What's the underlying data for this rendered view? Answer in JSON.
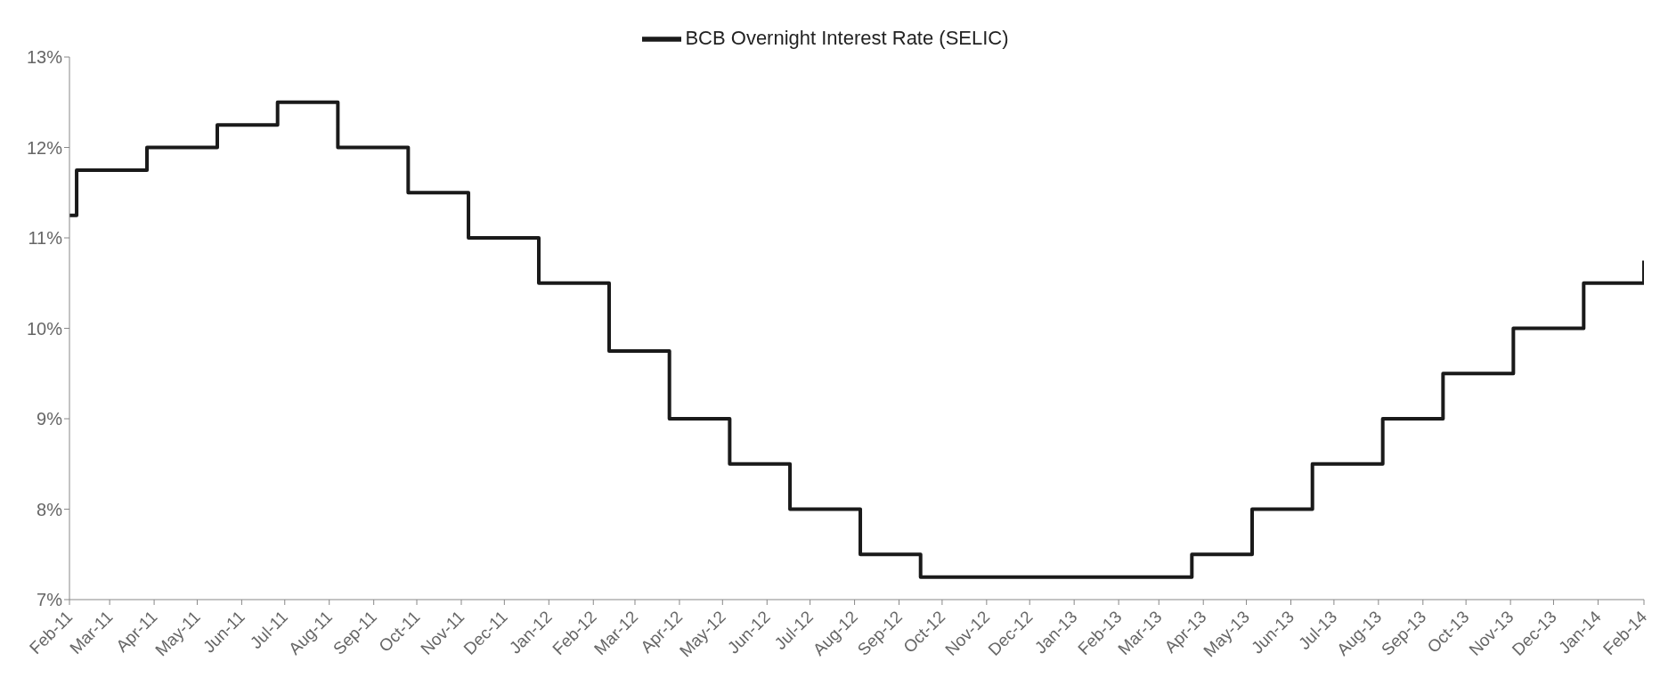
{
  "chart_data": {
    "type": "step",
    "series": [
      {
        "name": "BCB Overnight Interest Rate (SELIC)",
        "color": "#1a1a1a",
        "x": [
          "2011-02-25",
          "2011-03-02",
          "2011-04-20",
          "2011-06-08",
          "2011-07-20",
          "2011-08-31",
          "2011-10-19",
          "2011-11-30",
          "2012-01-18",
          "2012-03-07",
          "2012-04-18",
          "2012-05-30",
          "2012-07-11",
          "2012-08-29",
          "2012-10-10",
          "2013-04-17",
          "2013-05-29",
          "2013-07-10",
          "2013-08-28",
          "2013-10-09",
          "2013-11-27",
          "2014-01-15",
          "2014-02-26"
        ],
        "values": [
          11.25,
          11.75,
          12,
          12.25,
          12.5,
          12,
          11.5,
          11,
          10.5,
          9.75,
          9,
          8.5,
          8,
          7.5,
          7.25,
          7.5,
          8,
          8.5,
          9,
          9.5,
          10,
          10.5,
          10.75
        ]
      }
    ],
    "xlim": [
      "2011-02-25",
      "2014-02-26"
    ],
    "xticks": [
      {
        "value": "2011-02-25",
        "label": "Feb-11"
      },
      {
        "value": "2011-03-25",
        "label": "Mar-11"
      },
      {
        "value": "2011-04-25",
        "label": "Apr-11"
      },
      {
        "value": "2011-05-25",
        "label": "May-11"
      },
      {
        "value": "2011-06-25",
        "label": "Jun-11"
      },
      {
        "value": "2011-07-25",
        "label": "Jul-11"
      },
      {
        "value": "2011-08-25",
        "label": "Aug-11"
      },
      {
        "value": "2011-09-25",
        "label": "Sep-11"
      },
      {
        "value": "2011-10-25",
        "label": "Oct-11"
      },
      {
        "value": "2011-11-25",
        "label": "Nov-11"
      },
      {
        "value": "2011-12-25",
        "label": "Dec-11"
      },
      {
        "value": "2012-01-25",
        "label": "Jan-12"
      },
      {
        "value": "2012-02-25",
        "label": "Feb-12"
      },
      {
        "value": "2012-03-25",
        "label": "Mar-12"
      },
      {
        "value": "2012-04-25",
        "label": "Apr-12"
      },
      {
        "value": "2012-05-25",
        "label": "May-12"
      },
      {
        "value": "2012-06-25",
        "label": "Jun-12"
      },
      {
        "value": "2012-07-25",
        "label": "Jul-12"
      },
      {
        "value": "2012-08-25",
        "label": "Aug-12"
      },
      {
        "value": "2012-09-25",
        "label": "Sep-12"
      },
      {
        "value": "2012-10-25",
        "label": "Oct-12"
      },
      {
        "value": "2012-11-25",
        "label": "Nov-12"
      },
      {
        "value": "2012-12-25",
        "label": "Dec-12"
      },
      {
        "value": "2013-01-25",
        "label": "Jan-13"
      },
      {
        "value": "2013-02-25",
        "label": "Feb-13"
      },
      {
        "value": "2013-03-25",
        "label": "Mar-13"
      },
      {
        "value": "2013-04-25",
        "label": "Apr-13"
      },
      {
        "value": "2013-05-25",
        "label": "May-13"
      },
      {
        "value": "2013-06-25",
        "label": "Jun-13"
      },
      {
        "value": "2013-07-25",
        "label": "Jul-13"
      },
      {
        "value": "2013-08-25",
        "label": "Aug-13"
      },
      {
        "value": "2013-09-25",
        "label": "Sep-13"
      },
      {
        "value": "2013-10-25",
        "label": "Oct-13"
      },
      {
        "value": "2013-11-25",
        "label": "Nov-13"
      },
      {
        "value": "2013-12-25",
        "label": "Dec-13"
      },
      {
        "value": "2014-01-25",
        "label": "Jan-14"
      },
      {
        "value": "2014-02-26",
        "label": "Feb-14"
      }
    ],
    "ylim": [
      7,
      13
    ],
    "yticks": [
      {
        "value": 7,
        "label": "7%"
      },
      {
        "value": 8,
        "label": "8%"
      },
      {
        "value": 9,
        "label": "9%"
      },
      {
        "value": 10,
        "label": "10%"
      },
      {
        "value": 11,
        "label": "11%"
      },
      {
        "value": 12,
        "label": "12%"
      },
      {
        "value": 13,
        "label": "13%"
      }
    ],
    "grid": false,
    "legend": "top",
    "marker": "none",
    "line_style": "solid"
  }
}
